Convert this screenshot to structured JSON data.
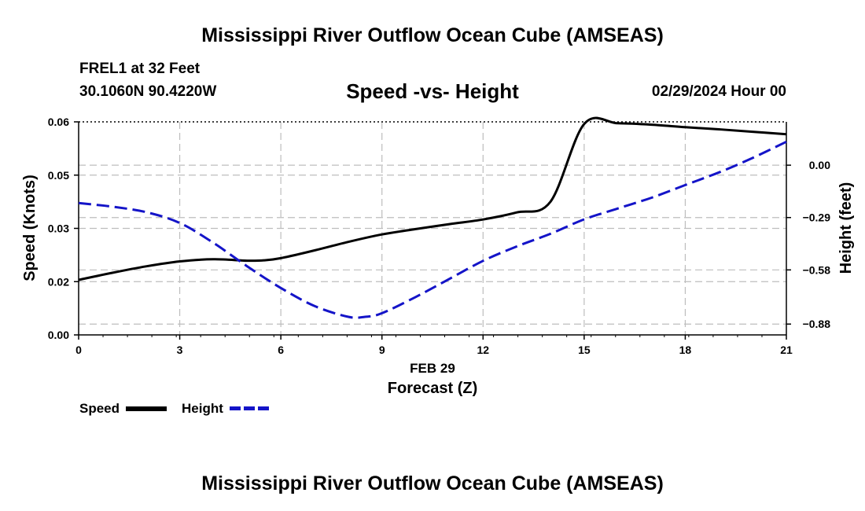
{
  "header": {
    "main_title": "Mississippi River Outflow Ocean Cube (AMSEAS)",
    "station": "FREL1 at 32 Feet",
    "coords": "30.1060N  90.4220W",
    "subtitle": "Speed -vs- Height",
    "datetime": "02/29/2024 Hour 00"
  },
  "footer": {
    "title": "Mississippi River Outflow Ocean Cube (AMSEAS)"
  },
  "legend": {
    "speed_label": "Speed",
    "height_label": "Height"
  },
  "colors": {
    "speed": "#000000",
    "height": "#1414c8",
    "grid": "#bdbdbd"
  },
  "chart_data": {
    "type": "line",
    "title": "Speed -vs- Height",
    "xlabel_date": "FEB 29",
    "xlabel": "Forecast (Z)",
    "ylabel": "Speed (Knots)",
    "ylabel_right": "Height (feet)",
    "xlim": [
      0,
      21
    ],
    "ylim": [
      0,
      0.06
    ],
    "ylim_right": [
      -0.94,
      0.24
    ],
    "x_ticks": [
      "0",
      "3",
      "6",
      "9",
      "12",
      "15",
      "18",
      "21"
    ],
    "y_ticks": [
      "0.00",
      "0.02",
      "0.03",
      "0.05",
      "0.06"
    ],
    "y_tick_values": [
      0,
      0.015,
      0.03,
      0.045,
      0.06
    ],
    "y_right_ticks": [
      "0.00",
      "−0.29",
      "−0.58",
      "−0.88"
    ],
    "y_right_tick_values": [
      0,
      -0.29,
      -0.58,
      -0.88
    ],
    "grid": true,
    "series": [
      {
        "name": "Speed",
        "axis": "left",
        "x": [
          0,
          1,
          2,
          3,
          4,
          5,
          5.5,
          6,
          7,
          8,
          9,
          10,
          11,
          12,
          13,
          14,
          15,
          16,
          17,
          18,
          19,
          20,
          21
        ],
        "values": [
          0.0155,
          0.0175,
          0.0193,
          0.0207,
          0.0213,
          0.0209,
          0.021,
          0.0216,
          0.0238,
          0.0262,
          0.0283,
          0.0298,
          0.0312,
          0.0325,
          0.0345,
          0.0375,
          0.0594,
          0.0596,
          0.0592,
          0.0585,
          0.0579,
          0.0572,
          0.0565
        ]
      },
      {
        "name": "Height",
        "axis": "right",
        "x": [
          0,
          1,
          2,
          3,
          4,
          5,
          6,
          7,
          8,
          8.5,
          9,
          10,
          11,
          12,
          13,
          14,
          15,
          16,
          17,
          18,
          19,
          20,
          21
        ],
        "values": [
          -0.21,
          -0.23,
          -0.26,
          -0.32,
          -0.43,
          -0.56,
          -0.68,
          -0.78,
          -0.84,
          -0.84,
          -0.82,
          -0.73,
          -0.63,
          -0.53,
          -0.45,
          -0.38,
          -0.3,
          -0.24,
          -0.18,
          -0.11,
          -0.04,
          0.04,
          0.13
        ]
      }
    ]
  }
}
